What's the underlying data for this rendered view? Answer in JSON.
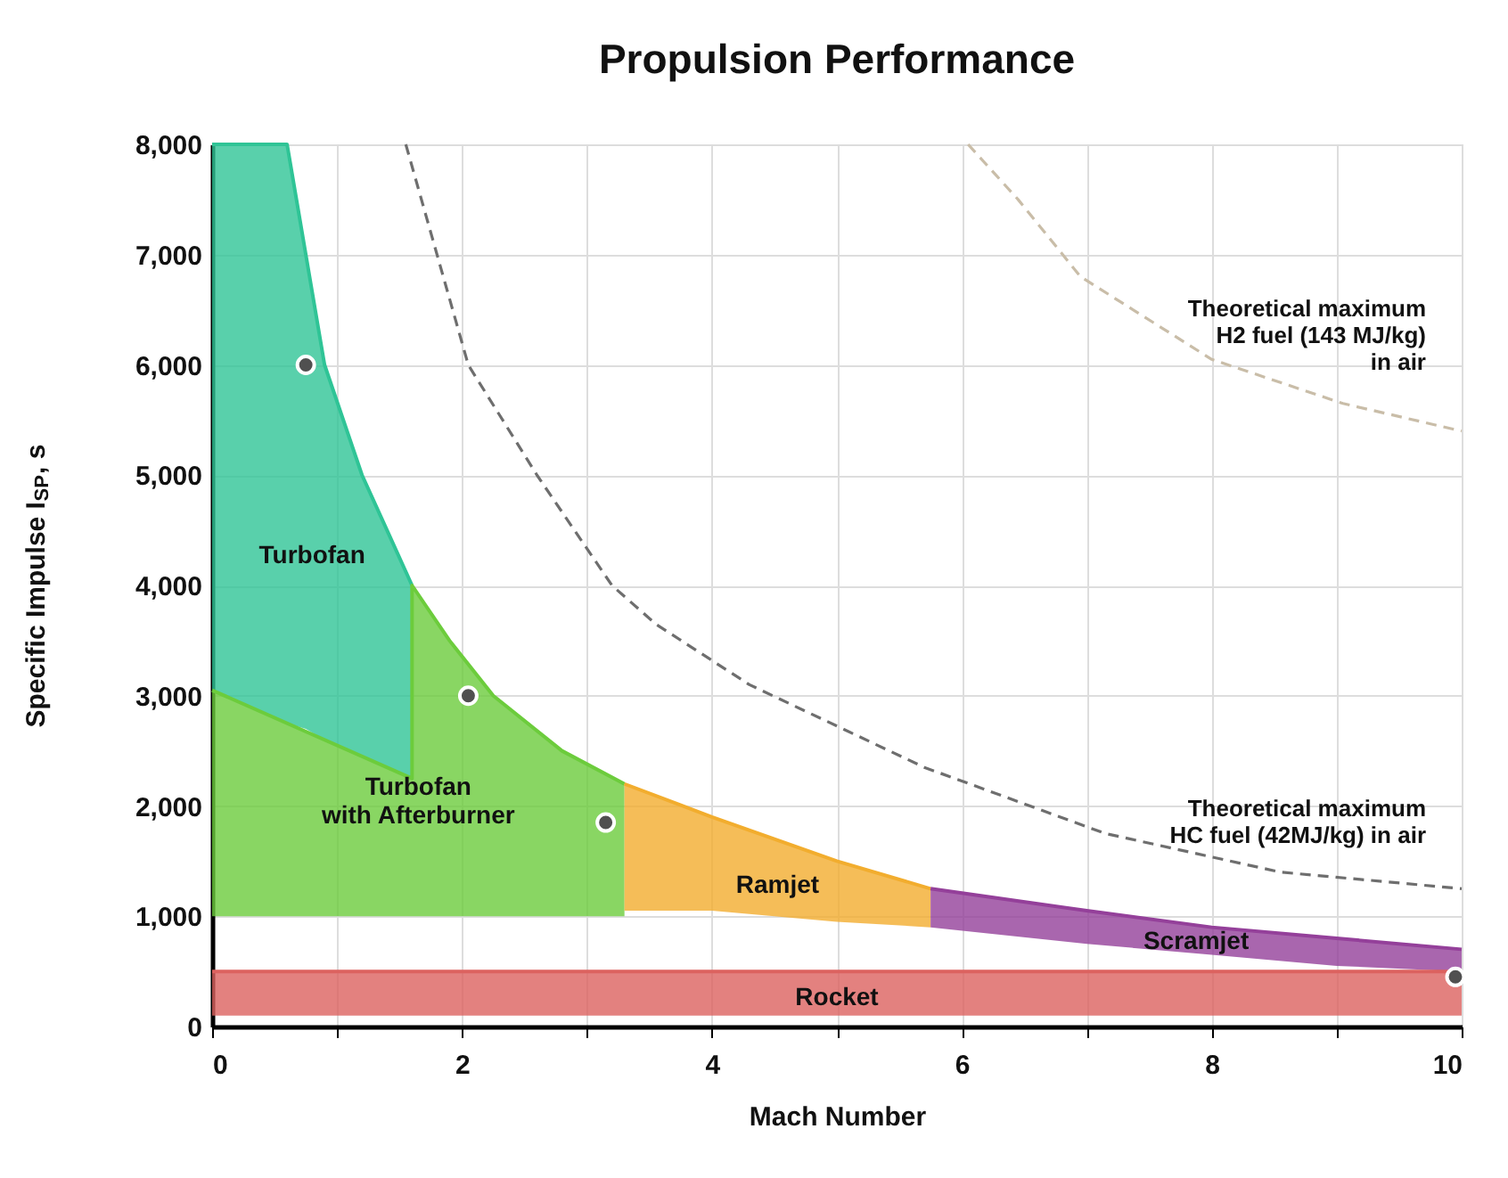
{
  "chart_data": {
    "type": "line",
    "title": "Propulsion Performance",
    "xlabel": "Mach Number",
    "ylabel": "Specific Impulse I$_{SP}$, s",
    "xlim": [
      0,
      10
    ],
    "xticks": [
      0,
      {
        "value": 1,
        "label": null
      },
      2,
      {
        "value": 3,
        "label": null
      },
      4,
      {
        "value": 5,
        "label": null
      },
      6,
      {
        "value": 7,
        "label": null
      },
      8,
      {
        "value": 9,
        "label": null
      },
      10
    ],
    "ylim": [
      0,
      8000
    ],
    "yticks": [
      0,
      {
        "value": 1000,
        "label": "1,000"
      },
      {
        "value": 2000,
        "label": "2,000"
      },
      {
        "value": 3000,
        "label": "3,000"
      },
      {
        "value": 4000,
        "label": "4,000"
      },
      {
        "value": 5000,
        "label": "5,000"
      },
      {
        "value": 6000,
        "label": "6,000"
      },
      {
        "value": 7000,
        "label": "7,000"
      },
      {
        "value": 8000,
        "label": "8,000"
      }
    ],
    "grid": true,
    "legend": false,
    "series": [
      {
        "type": "line",
        "name": "Turbofan",
        "color": "#2fc496",
        "x": [
          0,
          0.6,
          0.75,
          0.9,
          1.2,
          1.4,
          1.6
        ],
        "values": [
          8000,
          8000,
          7000,
          6000,
          5000,
          4500,
          4000
        ],
        "lower": [
          3050,
          2750,
          2700,
          2600,
          2450,
          2350,
          2250
        ],
        "upper": [
          8000,
          8000,
          7000,
          6000,
          5000,
          4500,
          4000
        ]
      },
      {
        "type": "line",
        "name": "Turbofan\nwith Afterburner",
        "color": "#6ccc3c",
        "x": [
          0,
          1.6,
          1.6,
          1.9,
          2.25,
          2.8,
          3.3
        ],
        "values": [
          3050,
          2250,
          4000,
          3500,
          3000,
          2500,
          2200
        ],
        "lower": [
          1000,
          1000,
          1000,
          1000,
          1000,
          1000,
          1000
        ],
        "upper": [
          3050,
          2250,
          4000,
          3500,
          3000,
          2500,
          2200
        ]
      },
      {
        "type": "line",
        "name": "Ramjet",
        "color": "#f2ad2e",
        "x": [
          3.3,
          4.0,
          4.5,
          5.0,
          5.75
        ],
        "values": [
          2200,
          1900,
          1700,
          1500,
          1250
        ],
        "lower": [
          1050,
          1050,
          1000,
          950,
          900
        ],
        "upper": [
          2200,
          1900,
          1700,
          1500,
          1250
        ]
      },
      {
        "type": "line",
        "name": "Scramjet",
        "color": "#94409a",
        "x": [
          5.75,
          7.0,
          8.0,
          9.0,
          10
        ],
        "values": [
          1250,
          1050,
          900,
          800,
          700
        ],
        "lower": [
          900,
          750,
          650,
          550,
          500
        ],
        "upper": [
          1250,
          1050,
          900,
          800,
          700
        ]
      },
      {
        "type": "line",
        "name": "Rocket",
        "color": "#dc625f",
        "x": [
          0,
          10
        ],
        "values": [
          500,
          500
        ],
        "lower": [
          100,
          100
        ],
        "upper": [
          500,
          500
        ]
      },
      {
        "type": "line",
        "name": "Theoretical maximum\nHC fuel (42MJ/kg) in air",
        "color": "#6e6e6e",
        "line_style": "dashed",
        "x": [
          1.55,
          1.8,
          2.05,
          2.6,
          3.2,
          3.55,
          4.3,
          5.7,
          7.15,
          8.55,
          10
        ],
        "values": [
          8000,
          7000,
          6000,
          5000,
          4000,
          3650,
          3100,
          2350,
          1750,
          1400,
          1250
        ]
      },
      {
        "type": "line",
        "name": "Theoretical maximum\nH2 fuel (143 MJ/kg)\nin air",
        "color": "#c9bda8",
        "line_style": "dashed",
        "x": [
          6.05,
          6.45,
          6.95,
          8.0,
          9.05,
          10
        ],
        "values": [
          8000,
          7500,
          6800,
          6050,
          5650,
          5400
        ]
      },
      {
        "type": "scatter",
        "color": "#505050",
        "marker": "circle",
        "x": [
          0.75,
          2.05,
          3.15,
          9.95
        ],
        "values": [
          6000,
          3000,
          1850,
          450
        ]
      }
    ]
  }
}
